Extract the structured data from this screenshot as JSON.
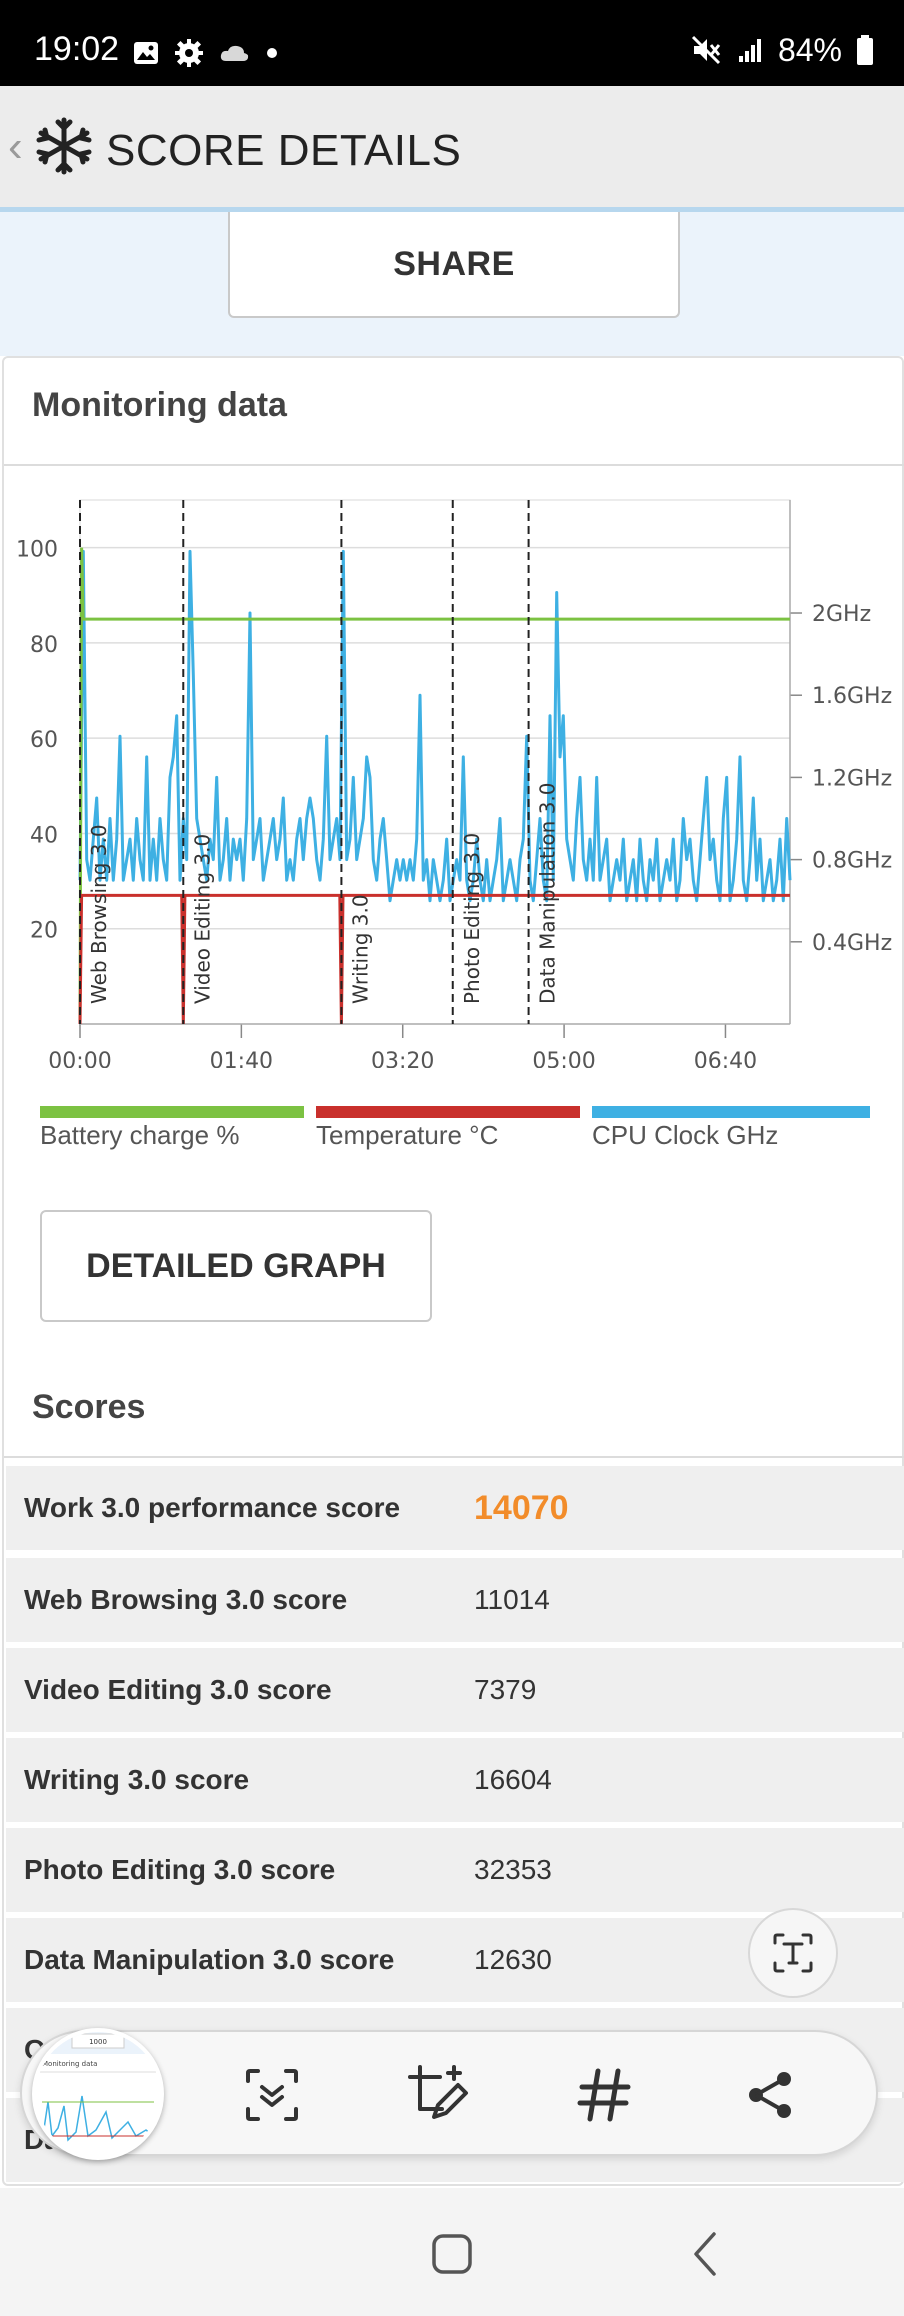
{
  "status_bar": {
    "time": "19:02",
    "battery_text": "84%",
    "icons": [
      "gallery-icon",
      "settings-icon",
      "cloud-icon",
      "dot-icon",
      "mute-icon",
      "signal-icon",
      "battery-icon"
    ]
  },
  "header": {
    "back_glyph": "‹",
    "title": "SCORE DETAILS"
  },
  "share": {
    "label": "SHARE"
  },
  "monitoring": {
    "title": "Monitoring data",
    "detailed_graph_label": "DETAILED GRAPH"
  },
  "chart_data": {
    "type": "line",
    "x_ticks": [
      "00:00",
      "01:40",
      "03:20",
      "05:00",
      "06:40"
    ],
    "x_range_seconds": [
      0,
      440
    ],
    "y_left_ticks": [
      "100",
      "80",
      "60",
      "40",
      "20"
    ],
    "y_left_range": [
      0,
      110
    ],
    "y_right_ticks": [
      "2GHz",
      "1.6GHz",
      "1.2GHz",
      "0.8GHz",
      "0.4GHz"
    ],
    "y_right_range_ghz": [
      0,
      2.55
    ],
    "grid": true,
    "legend_position": "bottom",
    "workloads": [
      {
        "name": "Web Browsing 3.0",
        "time_s": 0
      },
      {
        "name": "Video Editing 3.0",
        "time_s": 64
      },
      {
        "name": "Writing 3.0",
        "time_s": 162
      },
      {
        "name": "Photo Editing 3.0",
        "time_s": 231
      },
      {
        "name": "Data Manipulation 3.0",
        "time_s": 278
      }
    ],
    "series": [
      {
        "name": "Battery charge %",
        "color": "#7cc242",
        "points": [
          [
            0,
            0
          ],
          [
            1,
            100
          ],
          [
            2,
            85
          ],
          [
            440,
            85
          ]
        ]
      },
      {
        "name": "Temperature °C",
        "color": "#c9302c",
        "points": [
          [
            0,
            0
          ],
          [
            1,
            27
          ],
          [
            63,
            27
          ],
          [
            64,
            0
          ],
          [
            65,
            27
          ],
          [
            161,
            27
          ],
          [
            162,
            0
          ],
          [
            163,
            27
          ],
          [
            440,
            27
          ]
        ]
      },
      {
        "name": "CPU Clock GHz",
        "color": "#3eb0e3",
        "values_ghz": [
          0.7,
          2.3,
          0.8,
          0.7,
          0.9,
          1.1,
          0.7,
          0.9,
          0.7,
          1.0,
          0.7,
          0.9,
          1.4,
          0.7,
          0.8,
          0.9,
          0.7,
          1.0,
          0.8,
          0.7,
          1.3,
          0.7,
          0.9,
          0.7,
          1.0,
          0.8,
          0.7,
          1.2,
          1.3,
          1.5,
          0.7,
          1.0,
          0.8,
          2.3,
          1.7,
          1.0,
          0.9,
          0.8,
          0.7,
          0.9,
          0.8,
          1.2,
          0.7,
          0.8,
          1.0,
          0.7,
          0.9,
          0.8,
          0.9,
          0.7,
          1.0,
          2.0,
          0.8,
          0.9,
          1.0,
          0.7,
          0.8,
          0.9,
          1.0,
          0.8,
          0.9,
          1.1,
          0.7,
          0.8,
          0.7,
          0.9,
          1.0,
          0.8,
          1.0,
          1.1,
          1.0,
          0.8,
          0.7,
          0.9,
          1.4,
          0.8,
          0.9,
          1.0,
          0.8,
          2.3,
          0.8,
          0.9,
          1.2,
          0.8,
          0.9,
          1.0,
          1.3,
          1.2,
          0.8,
          0.7,
          0.9,
          1.0,
          0.8,
          0.6,
          0.7,
          0.8,
          0.7,
          0.8,
          0.7,
          0.8,
          0.7,
          0.9,
          1.6,
          0.7,
          0.8,
          0.6,
          0.8,
          0.7,
          0.6,
          0.7,
          0.9,
          0.6,
          0.7,
          0.8,
          0.7,
          1.3,
          0.7,
          0.6,
          0.7,
          0.9,
          0.7,
          0.6,
          0.8,
          0.6,
          0.7,
          0.8,
          1.0,
          0.6,
          0.7,
          0.8,
          0.7,
          0.6,
          0.8,
          0.9,
          1.4,
          0.7,
          0.6,
          0.8,
          1.0,
          0.7,
          0.6,
          1.5,
          0.7,
          2.1,
          1.3,
          1.5,
          0.9,
          0.8,
          0.7,
          1.0,
          1.2,
          0.8,
          0.7,
          0.9,
          0.7,
          1.2,
          0.7,
          0.8,
          0.9,
          0.6,
          0.7,
          0.8,
          0.7,
          0.9,
          0.6,
          0.7,
          0.8,
          0.6,
          0.9,
          0.7,
          0.6,
          0.8,
          0.7,
          0.9,
          0.6,
          0.7,
          0.8,
          0.7,
          0.9,
          0.6,
          0.7,
          1.0,
          0.8,
          0.9,
          0.7,
          0.6,
          0.8,
          1.0,
          1.2,
          0.8,
          0.9,
          0.7,
          0.6,
          1.0,
          1.2,
          0.6,
          0.7,
          0.9,
          1.3,
          0.7,
          0.6,
          0.8,
          1.1,
          0.7,
          0.9,
          0.6,
          0.7,
          0.8,
          0.6,
          0.7,
          0.9,
          0.6,
          1.0,
          0.7
        ]
      }
    ]
  },
  "legend": [
    {
      "label": "Battery charge %",
      "color": "#7cc242"
    },
    {
      "label": "Temperature °C",
      "color": "#c9302c"
    },
    {
      "label": "CPU Clock GHz",
      "color": "#3eb0e3"
    }
  ],
  "scores": {
    "title": "Scores",
    "rows": [
      {
        "label": "Work 3.0 performance score",
        "value": "14070"
      },
      {
        "label": "Web Browsing 3.0 score",
        "value": "11014"
      },
      {
        "label": "Video Editing 3.0 score",
        "value": "7379"
      },
      {
        "label": "Writing 3.0 score",
        "value": "16604"
      },
      {
        "label": "Photo Editing 3.0 score",
        "value": "32353"
      },
      {
        "label": "Data Manipulation 3.0 score",
        "value": "12630"
      },
      {
        "label": "O",
        "value": ""
      },
      {
        "label": "Da",
        "value": ""
      }
    ]
  },
  "toolbar": {
    "buttons": [
      "scroll-capture-icon",
      "edit-crop-icon",
      "hashtag-icon",
      "share-icon"
    ],
    "thumb_header": "1000",
    "thumb_title": "Monitoring data"
  }
}
